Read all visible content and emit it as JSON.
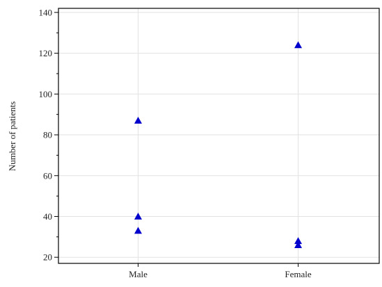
{
  "chart_data": {
    "type": "scatter",
    "title": "",
    "xlabel": "",
    "ylabel": "Number of patients",
    "categories": [
      "Male",
      "Female"
    ],
    "ylim": [
      17,
      142
    ],
    "yticks": [
      20,
      40,
      60,
      80,
      100,
      120,
      140
    ],
    "grid": true,
    "marker": "triangle",
    "marker_color": "#0000cc",
    "points": [
      {
        "category": "Male",
        "value": 87
      },
      {
        "category": "Male",
        "value": 40
      },
      {
        "category": "Male",
        "value": 33
      },
      {
        "category": "Female",
        "value": 124
      },
      {
        "category": "Female",
        "value": 28
      },
      {
        "category": "Female",
        "value": 26
      }
    ]
  }
}
